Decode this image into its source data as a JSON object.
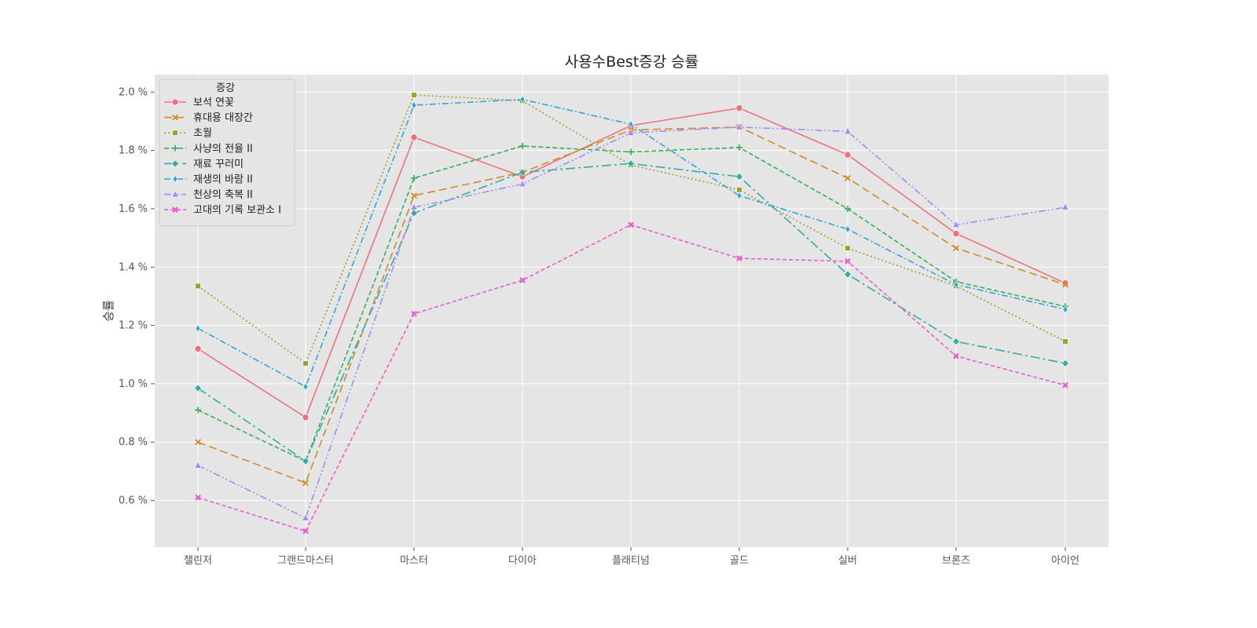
{
  "chart_data": {
    "type": "line",
    "title": "사용수Best증강 승률",
    "xlabel": "",
    "ylabel": "승률",
    "categories": [
      "챌린저",
      "그랜드마스터",
      "마스터",
      "다이아",
      "플래티넘",
      "골드",
      "실버",
      "브론즈",
      "아이언"
    ],
    "ylim": [
      0.44,
      2.06
    ],
    "yticks": [
      0.6,
      0.8,
      1.0,
      1.2,
      1.4,
      1.6,
      1.8,
      2.0
    ],
    "ytick_labels": [
      "0.6 %",
      "0.8 %",
      "1.0 %",
      "1.2 %",
      "1.4 %",
      "1.6 %",
      "1.8 %",
      "2.0 %"
    ],
    "grid": true,
    "legend_title": "증강",
    "legend_position": "top-left",
    "series": [
      {
        "name": "보석 연꽃",
        "color": "#f0717e",
        "dash": "",
        "marker": "circle",
        "values": [
          1.12,
          0.885,
          1.845,
          1.71,
          1.885,
          1.945,
          1.785,
          1.515,
          1.345
        ]
      },
      {
        "name": "휴대용 대장간",
        "color": "#cc8c2e",
        "dash": "10,5",
        "marker": "x",
        "values": [
          0.8,
          0.66,
          1.645,
          1.725,
          1.87,
          1.88,
          1.705,
          1.465,
          1.34
        ]
      },
      {
        "name": "초월",
        "color": "#9aa031",
        "dash": "2,3",
        "marker": "square",
        "values": [
          1.335,
          1.07,
          1.99,
          1.97,
          1.75,
          1.665,
          1.465,
          1.335,
          1.145
        ]
      },
      {
        "name": "사냥의 전율 II",
        "color": "#3aae58",
        "dash": "6,3",
        "marker": "plus",
        "values": [
          0.91,
          0.735,
          1.705,
          1.815,
          1.795,
          1.81,
          1.6,
          1.35,
          1.265
        ]
      },
      {
        "name": "재료 꾸러미",
        "color": "#33aca3",
        "dash": "12,4,3,4",
        "marker": "diamond",
        "values": [
          0.985,
          0.735,
          1.585,
          1.725,
          1.755,
          1.71,
          1.375,
          1.145,
          1.07
        ]
      },
      {
        "name": "재생의 바람 II",
        "color": "#34a5d8",
        "dash": "8,3,2,3",
        "marker": "thin-diamond",
        "values": [
          1.19,
          0.99,
          1.955,
          1.975,
          1.89,
          1.645,
          1.53,
          1.34,
          1.255
        ]
      },
      {
        "name": "천상의 축복 II",
        "color": "#a38cf3",
        "dash": "9,3,2,3,2,3",
        "marker": "triangle",
        "values": [
          0.72,
          0.54,
          1.605,
          1.685,
          1.86,
          1.88,
          1.865,
          1.545,
          1.605
        ]
      },
      {
        "name": "고대의 기록 보관소 I",
        "color": "#ec5ccc",
        "dash": "5,3",
        "marker": "x-thick",
        "values": [
          0.61,
          0.495,
          1.24,
          1.355,
          1.545,
          1.43,
          1.42,
          1.095,
          0.995
        ]
      }
    ]
  }
}
